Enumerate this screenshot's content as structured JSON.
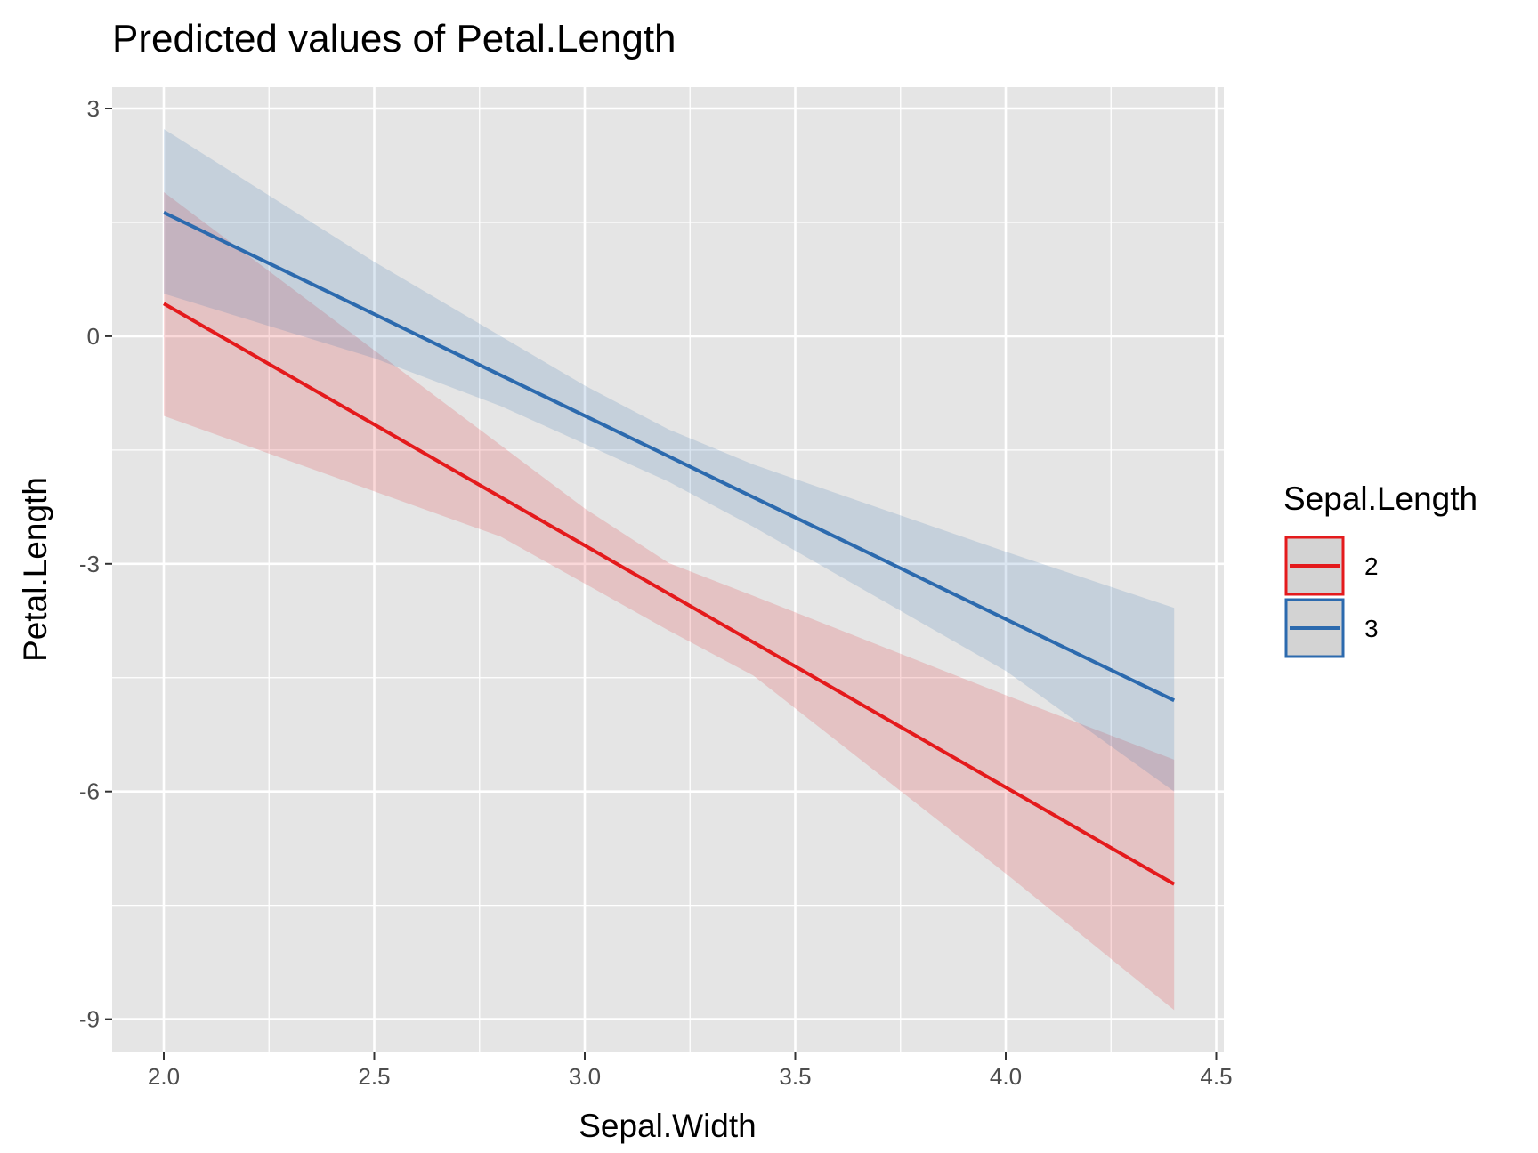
{
  "chart_data": {
    "type": "line",
    "title": "Predicted values of Petal.Length",
    "xlabel": "Sepal.Width",
    "ylabel": "Petal.Length",
    "xlim": [
      1.88,
      4.52
    ],
    "ylim": [
      -9.4,
      3.3
    ],
    "x_ticks": [
      2.0,
      2.5,
      3.0,
      3.5,
      4.0,
      4.5
    ],
    "x_tick_labels": [
      "2.0",
      "2.5",
      "3.0",
      "3.5",
      "4.0",
      "4.5"
    ],
    "y_ticks": [
      3,
      0,
      -3,
      -6,
      -9
    ],
    "y_tick_labels": [
      "3",
      "0",
      "-3",
      "-6",
      "-9"
    ],
    "grid": true,
    "legend": {
      "title": "Sepal.Length",
      "position": "right"
    },
    "series": [
      {
        "name": "2",
        "color": "#E41A1C",
        "x": [
          2.0,
          4.4
        ],
        "y": [
          0.43,
          -7.22
        ],
        "ribbon_upper": {
          "x": [
            2.0,
            3.0,
            3.2,
            3.4,
            4.0,
            4.4
          ],
          "y": [
            1.9,
            -2.27,
            -2.99,
            -3.42,
            -4.73,
            -5.58
          ]
        },
        "ribbon_lower": {
          "x": [
            2.0,
            2.8,
            3.2,
            3.4,
            4.0,
            4.4
          ],
          "y": [
            -1.05,
            -2.64,
            -3.88,
            -4.47,
            -7.08,
            -8.88
          ]
        }
      },
      {
        "name": "3",
        "color": "#2C6AAE",
        "x": [
          2.0,
          4.4
        ],
        "y": [
          1.63,
          -4.8
        ],
        "ribbon_upper": {
          "x": [
            2.0,
            2.5,
            3.0,
            3.2,
            3.4,
            4.0,
            4.4
          ],
          "y": [
            2.73,
            0.98,
            -0.65,
            -1.23,
            -1.69,
            -2.84,
            -3.58
          ]
        },
        "ribbon_lower": {
          "x": [
            2.0,
            2.5,
            2.8,
            3.2,
            3.4,
            4.0,
            4.4
          ],
          "y": [
            0.56,
            -0.29,
            -0.92,
            -1.92,
            -2.51,
            -4.41,
            -6.0
          ]
        }
      }
    ]
  }
}
